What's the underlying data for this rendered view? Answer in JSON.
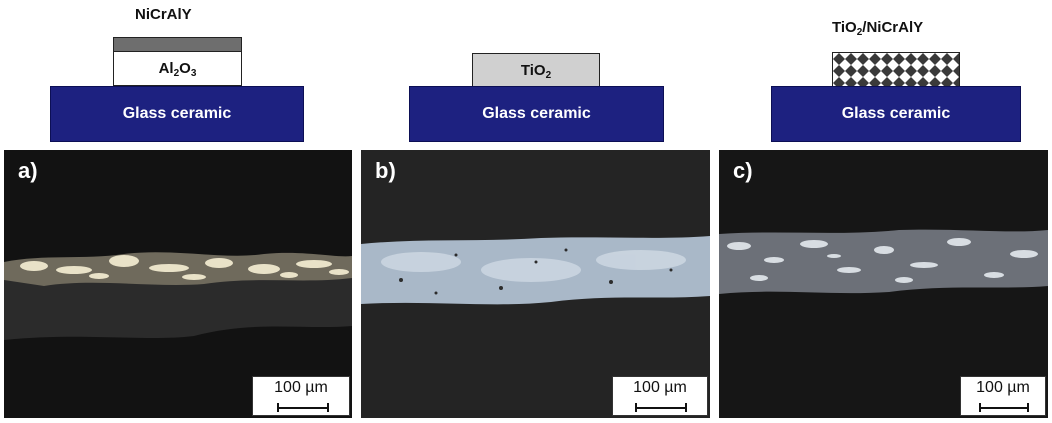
{
  "schematics": {
    "a": {
      "top_label": "NiCrAlY",
      "mid_main": "Al",
      "mid_sub1": "2",
      "mid_o": "O",
      "mid_sub2": "3",
      "substrate": "Glass ceramic"
    },
    "b": {
      "mid_main": "TiO",
      "mid_sub": "2",
      "substrate": "Glass ceramic"
    },
    "c": {
      "top_main": "TiO",
      "top_sub": "2",
      "top_rest": "/NiCrAlY",
      "substrate": "Glass ceramic"
    }
  },
  "panels": [
    {
      "letter": "a)",
      "scale": "100 µm"
    },
    {
      "letter": "b)",
      "scale": "100 µm"
    },
    {
      "letter": "c)",
      "scale": "100 µm"
    }
  ],
  "colors": {
    "substrate": "#1d2180",
    "nicraly_layer": "#6e6e6e",
    "tio2_layer": "#d0d0d0",
    "micrograph_bg": "#141414"
  }
}
